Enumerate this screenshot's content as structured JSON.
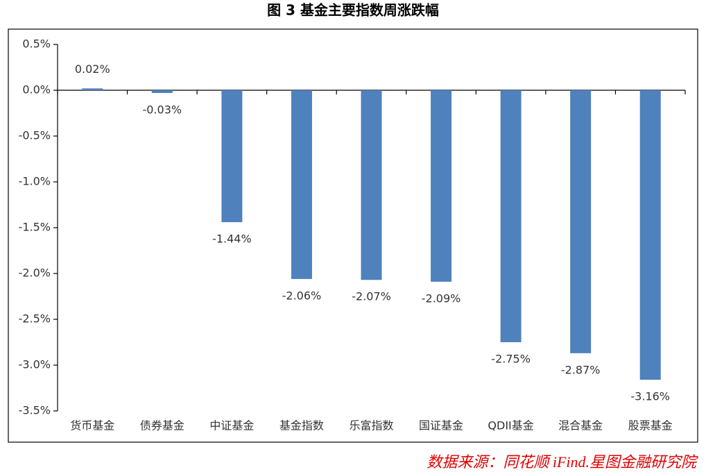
{
  "chart_data": {
    "type": "bar",
    "title": "图 3 基金主要指数周涨跌幅",
    "source": "数据来源：同花顺 iFind.星图金融研究院",
    "categories": [
      "货币基金",
      "债券基金",
      "中证基金",
      "基金指数",
      "乐富指数",
      "国证基金",
      "QDII基金",
      "混合基金",
      "股票基金"
    ],
    "values": [
      0.02,
      -0.03,
      -1.44,
      -2.06,
      -2.07,
      -2.09,
      -2.75,
      -2.87,
      -3.16
    ],
    "value_labels": [
      "0.02%",
      "-0.03%",
      "-1.44%",
      "-2.06%",
      "-2.07%",
      "-2.09%",
      "-2.75%",
      "-2.87%",
      "-3.16%"
    ],
    "color": "#4f81bd",
    "ylim": [
      -3.5,
      0.5
    ],
    "yticks": [
      {
        "value": 0.5,
        "label": "0.5%"
      },
      {
        "value": 0,
        "label": "0.0%"
      },
      {
        "value": -0.5,
        "label": "-0.5%"
      },
      {
        "value": -1,
        "label": "-1.0%"
      },
      {
        "value": -1.5,
        "label": "-1.5%"
      },
      {
        "value": -2,
        "label": "-2.0%"
      },
      {
        "value": -2.5,
        "label": "-2.5%"
      },
      {
        "value": -3,
        "label": "-3.0%"
      },
      {
        "value": -3.5,
        "label": "-3.5%"
      }
    ],
    "grid": false
  }
}
